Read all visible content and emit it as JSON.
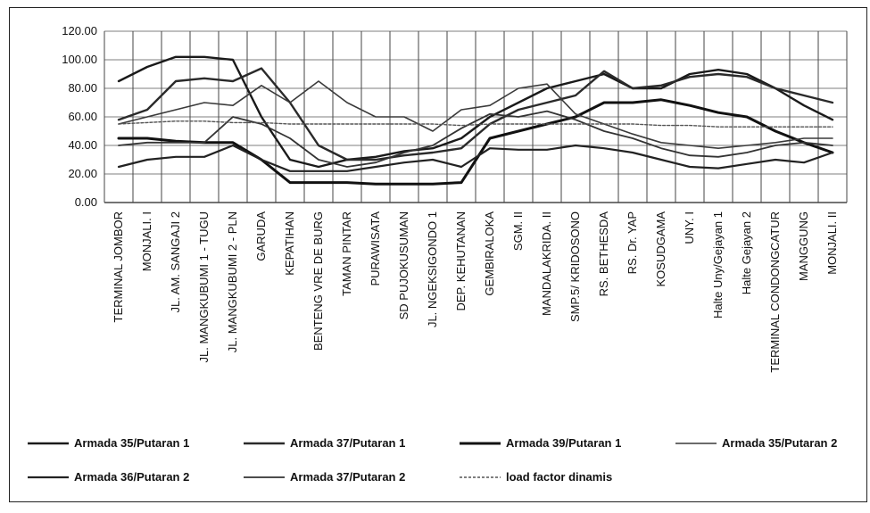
{
  "chart_data": {
    "type": "line",
    "title": "",
    "xlabel": "",
    "ylabel": "",
    "ylim": [
      0,
      120
    ],
    "yticks": [
      "0.00",
      "20.00",
      "40.00",
      "60.00",
      "80.00",
      "100.00",
      "120.00"
    ],
    "grid": "horizontal",
    "legend_position": "bottom",
    "categories": [
      "TERMINAL JOMBOR",
      "MONJALI. I",
      "JL. AM. SANGAJI 2",
      "JL. MANGKUBUMI 1 - TUGU",
      "JL. MANGKUBUMI 2 - PLN",
      "GARUDA",
      "KEPATIHAN",
      "BENTENG VRE DE BURG",
      "TAMAN PINTAR",
      "PURAWISATA",
      "SD PUJOKUSUMAN",
      "JL. NGEKSIGONDO 1",
      "DEP. KEHUTANAN",
      "GEMBIRALOKA",
      "SGM. II",
      "MANDALAKRIDA. II",
      "SMP.5/ KRIDOSONO",
      "RS. BETHESDA",
      "RS. Dr. YAP",
      "KOSUDGAMA",
      "UNY. I",
      "Halte Uny/Gejayan 1",
      "Halte Gejayan 2",
      "TERMINAL CONDONGCATUR",
      "MANGGUNG",
      "MONJALI. II"
    ],
    "series": [
      {
        "name": "Armada 35/Putaran 1",
        "values": [
          85,
          95,
          102,
          102,
          100,
          60,
          30,
          25,
          30,
          32,
          36,
          38,
          45,
          60,
          70,
          80,
          85,
          90,
          80,
          80,
          90,
          93,
          90,
          80,
          68,
          58
        ]
      },
      {
        "name": "Armada 37/Putaran 1",
        "values": [
          58,
          65,
          85,
          87,
          85,
          94,
          70,
          40,
          30,
          30,
          33,
          35,
          38,
          55,
          65,
          70,
          75,
          92,
          80,
          82,
          88,
          90,
          88,
          80,
          75,
          70
        ]
      },
      {
        "name": "Armada 39/Putaran 1",
        "values": [
          45,
          45,
          43,
          42,
          42,
          30,
          14,
          14,
          14,
          13,
          13,
          13,
          14,
          45,
          50,
          55,
          60,
          70,
          70,
          72,
          68,
          63,
          60,
          50,
          42,
          35
        ]
      },
      {
        "name": "Armada 35/Putaran 2",
        "values": [
          55,
          60,
          65,
          70,
          68,
          82,
          70,
          85,
          70,
          60,
          60,
          50,
          65,
          68,
          80,
          83,
          62,
          55,
          48,
          42,
          40,
          38,
          40,
          42,
          45,
          45
        ]
      },
      {
        "name": "Armada 36/Putaran 2",
        "values": [
          25,
          30,
          32,
          32,
          40,
          30,
          22,
          22,
          22,
          25,
          28,
          30,
          25,
          38,
          37,
          37,
          40,
          38,
          35,
          30,
          25,
          24,
          27,
          30,
          28,
          35
        ]
      },
      {
        "name": "Armada 37/Putaran 2",
        "values": [
          40,
          42,
          42,
          42,
          60,
          55,
          45,
          30,
          25,
          28,
          35,
          40,
          52,
          62,
          60,
          64,
          58,
          50,
          45,
          38,
          33,
          32,
          35,
          40,
          42,
          40
        ]
      },
      {
        "name": "load factor dinamis",
        "values": [
          55,
          56,
          57,
          57,
          56,
          56,
          55,
          55,
          55,
          55,
          55,
          55,
          54,
          55,
          55,
          55,
          55,
          55,
          55,
          54,
          54,
          53,
          53,
          53,
          53,
          53
        ]
      }
    ]
  },
  "legend": {
    "row1": [
      "Armada 35/Putaran 1",
      "Armada 37/Putaran 1",
      "Armada 39/Putaran 1",
      "Armada 35/Putaran 2"
    ],
    "row2": [
      "Armada 36/Putaran 2",
      "Armada 37/Putaran 2",
      "load factor dinamis"
    ]
  }
}
